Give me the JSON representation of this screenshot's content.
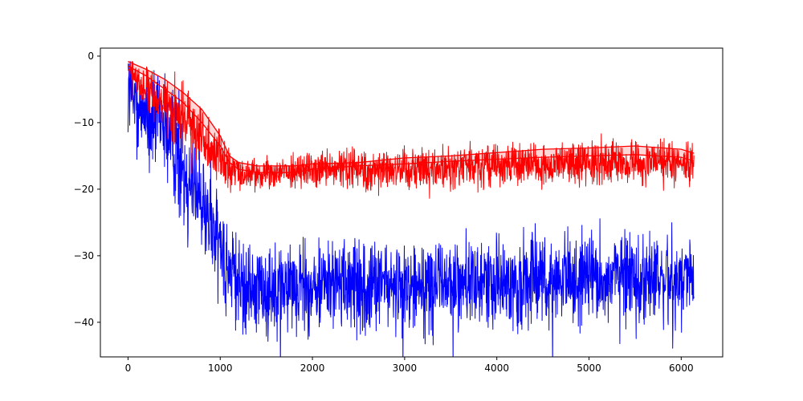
{
  "chart_data": {
    "type": "line",
    "title": "",
    "xlabel": "",
    "ylabel": "",
    "xlim": [
      -300,
      6450
    ],
    "ylim": [
      -45.2,
      1.2
    ],
    "grid": false,
    "legend": "none",
    "x_ticks": [
      0,
      1000,
      2000,
      3000,
      4000,
      5000,
      6000
    ],
    "x_tick_labels": [
      "0",
      "1000",
      "2000",
      "3000",
      "4000",
      "5000",
      "6000"
    ],
    "y_ticks": [
      0,
      -10,
      -20,
      -30,
      -40
    ],
    "y_tick_labels": [
      "0",
      "−10",
      "−20",
      "−30",
      "−40"
    ],
    "colors": {
      "blue": "#0000ff",
      "red": "#ff0000",
      "band": "#ffbcbc"
    },
    "series": [
      {
        "style": "noisy",
        "color": "blue",
        "x": [
          0,
          100,
          200,
          300,
          400,
          500,
          600,
          700,
          800,
          900,
          1000,
          1100,
          1200,
          1400,
          1600,
          2000,
          2500,
          3000,
          3500,
          4000,
          4500,
          5000,
          5500,
          6000,
          6140
        ],
        "values": [
          -5,
          -7,
          -9,
          -9.5,
          -11,
          -13,
          -16,
          -19,
          -22,
          -25,
          -28,
          -32,
          -34.5,
          -35,
          -34.5,
          -34.5,
          -34.5,
          -34.5,
          -34,
          -34,
          -34,
          -33.5,
          -33,
          -33.5,
          -34
        ],
        "spread": [
          3.5,
          3.5,
          3.5,
          3.5,
          3.5,
          4,
          4,
          4,
          4,
          4,
          4,
          3.5,
          3.5,
          3.5,
          3.2,
          3.2,
          3.2,
          3.2,
          3.2,
          3.2,
          3.2,
          3.2,
          3.2,
          3.2,
          3.2
        ]
      },
      {
        "style": "noisy",
        "color": "red",
        "x": [
          0,
          100,
          200,
          300,
          400,
          500,
          600,
          700,
          800,
          900,
          1000,
          1100,
          1200,
          1500,
          2000,
          2500,
          3000,
          3500,
          4000,
          4500,
          5000,
          5500,
          6000,
          6140
        ],
        "values": [
          -2,
          -3.5,
          -5,
          -6.5,
          -7,
          -8,
          -9,
          -10.5,
          -12,
          -14,
          -15,
          -17,
          -17.5,
          -17.5,
          -17,
          -17,
          -16.8,
          -16.5,
          -16.3,
          -16.3,
          -16,
          -16,
          -16,
          -16.3
        ],
        "spread": [
          1,
          1.5,
          1.5,
          1.5,
          1.5,
          2,
          2,
          2,
          2,
          2,
          2,
          1.5,
          1.2,
          1,
          1.2,
          1.4,
          1.5,
          1.5,
          1.5,
          1.5,
          1.5,
          1.5,
          1.5,
          1.5
        ]
      },
      {
        "style": "smooth",
        "color": "red",
        "x": [
          0,
          200,
          400,
          600,
          800,
          1000,
          1100,
          1200,
          1400,
          1600,
          1800,
          2000,
          2500,
          3000,
          3500,
          4000,
          4500,
          5000,
          5500,
          6000,
          6140
        ],
        "values": [
          -0.8,
          -2,
          -3.5,
          -5.5,
          -8,
          -12,
          -15,
          -16,
          -16.5,
          -16.5,
          -16.5,
          -16.2,
          -16,
          -15.3,
          -15,
          -14.5,
          -14,
          -13.8,
          -13.5,
          -14,
          -14.6
        ]
      },
      {
        "style": "smooth",
        "color": "red",
        "x": [
          0,
          200,
          400,
          600,
          800,
          1000,
          1100,
          1200,
          1400,
          1600,
          1800,
          2000,
          2500,
          3000,
          3500,
          4000,
          4500,
          5000,
          5500,
          6000,
          6140
        ],
        "values": [
          -1.5,
          -3,
          -5,
          -7,
          -10,
          -13.5,
          -16,
          -17,
          -17.5,
          -17.5,
          -17.5,
          -17,
          -16.5,
          -16.2,
          -15.8,
          -15.5,
          -15.2,
          -15,
          -14.8,
          -15.2,
          -15.8
        ]
      }
    ]
  }
}
